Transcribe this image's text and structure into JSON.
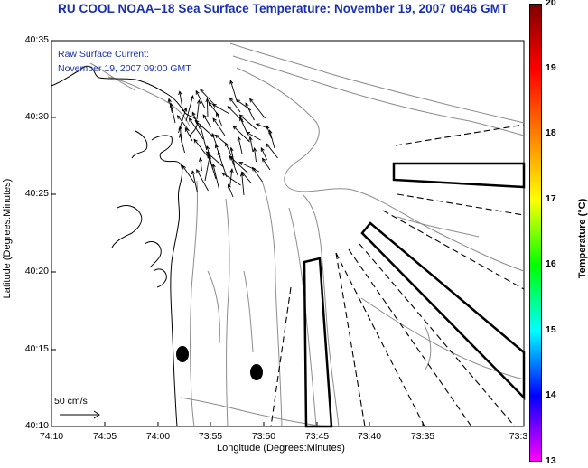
{
  "title": "RU COOL  NOAA–18  Sea Surface Temperature:  November 19, 2007 0646 GMT",
  "current_label": {
    "line1": "Raw Surface Current:",
    "line2": "November 19, 2007 09:00 GMT"
  },
  "axes": {
    "xlabel": "Longitude (Degrees:Minutes)",
    "ylabel": "Latitude (Degrees:Minutes)",
    "xticks": [
      "74:10",
      "74:05",
      "74:00",
      "73:55",
      "73:50",
      "73:45",
      "73:40",
      "73:35",
      "73:3"
    ],
    "yticks": [
      "40:35",
      "40:30",
      "40:25",
      "40:20",
      "40:15",
      "40:10"
    ]
  },
  "colorbar": {
    "label": "Temperature (°C)",
    "ticks": [
      "20",
      "19",
      "18",
      "17",
      "16",
      "15",
      "14",
      "13"
    ],
    "range": [
      13,
      20
    ],
    "colors": [
      "#ff00ff",
      "#0000ff",
      "#00ffff",
      "#00ff00",
      "#ffff00",
      "#ff8000",
      "#ff0000",
      "#800000"
    ]
  },
  "scale_vector": {
    "label": "50 cm/s"
  },
  "colors": {
    "title_text": "#1a2fb0",
    "contours": "#8c8c8c",
    "coast": "#000000",
    "arrows": "#000000"
  }
}
